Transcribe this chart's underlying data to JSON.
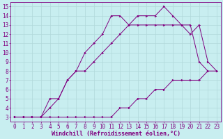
{
  "background_color": "#c8eef0",
  "line_color": "#800080",
  "grid_color": "#b0d8da",
  "xlabel": "Windchill (Refroidissement éolien,°C)",
  "xlabel_fontsize": 6,
  "tick_fontsize": 5.5,
  "xlim": [
    -0.5,
    23.5
  ],
  "ylim": [
    2.5,
    15.5
  ],
  "xticks": [
    0,
    1,
    2,
    3,
    4,
    5,
    6,
    7,
    8,
    9,
    10,
    11,
    12,
    13,
    14,
    15,
    16,
    17,
    18,
    19,
    20,
    21,
    22,
    23
  ],
  "yticks": [
    3,
    4,
    5,
    6,
    7,
    8,
    9,
    10,
    11,
    12,
    13,
    14,
    15
  ],
  "line1_x": [
    0,
    1,
    2,
    3,
    4,
    5,
    6,
    7,
    8,
    9,
    10,
    11,
    12,
    13,
    14,
    15,
    16,
    17,
    18,
    19,
    20,
    21,
    22,
    23
  ],
  "line1_y": [
    3,
    3,
    3,
    3,
    3,
    3,
    3,
    3,
    3,
    3,
    3,
    3,
    4,
    4,
    5,
    5,
    6,
    6,
    7,
    7,
    7,
    7,
    8,
    8
  ],
  "line2_x": [
    0,
    1,
    2,
    3,
    4,
    5,
    6,
    7,
    8,
    9,
    10,
    11,
    12,
    13,
    14,
    15,
    16,
    17,
    18,
    19,
    20,
    21,
    22
  ],
  "line2_y": [
    3,
    3,
    3,
    3,
    5,
    5,
    7,
    8,
    8,
    9,
    10,
    11,
    12,
    13,
    13,
    13,
    13,
    13,
    13,
    13,
    13,
    9,
    8
  ],
  "line3_x": [
    0,
    1,
    2,
    3,
    4,
    5,
    6,
    7,
    8,
    9,
    10,
    11,
    12,
    13,
    14,
    15,
    16,
    17,
    18,
    19,
    20,
    21,
    22,
    23
  ],
  "line3_y": [
    3,
    3,
    3,
    3,
    4,
    5,
    7,
    8,
    10,
    11,
    12,
    14,
    14,
    13,
    14,
    14,
    14,
    15,
    14,
    13,
    12,
    13,
    9,
    8
  ]
}
